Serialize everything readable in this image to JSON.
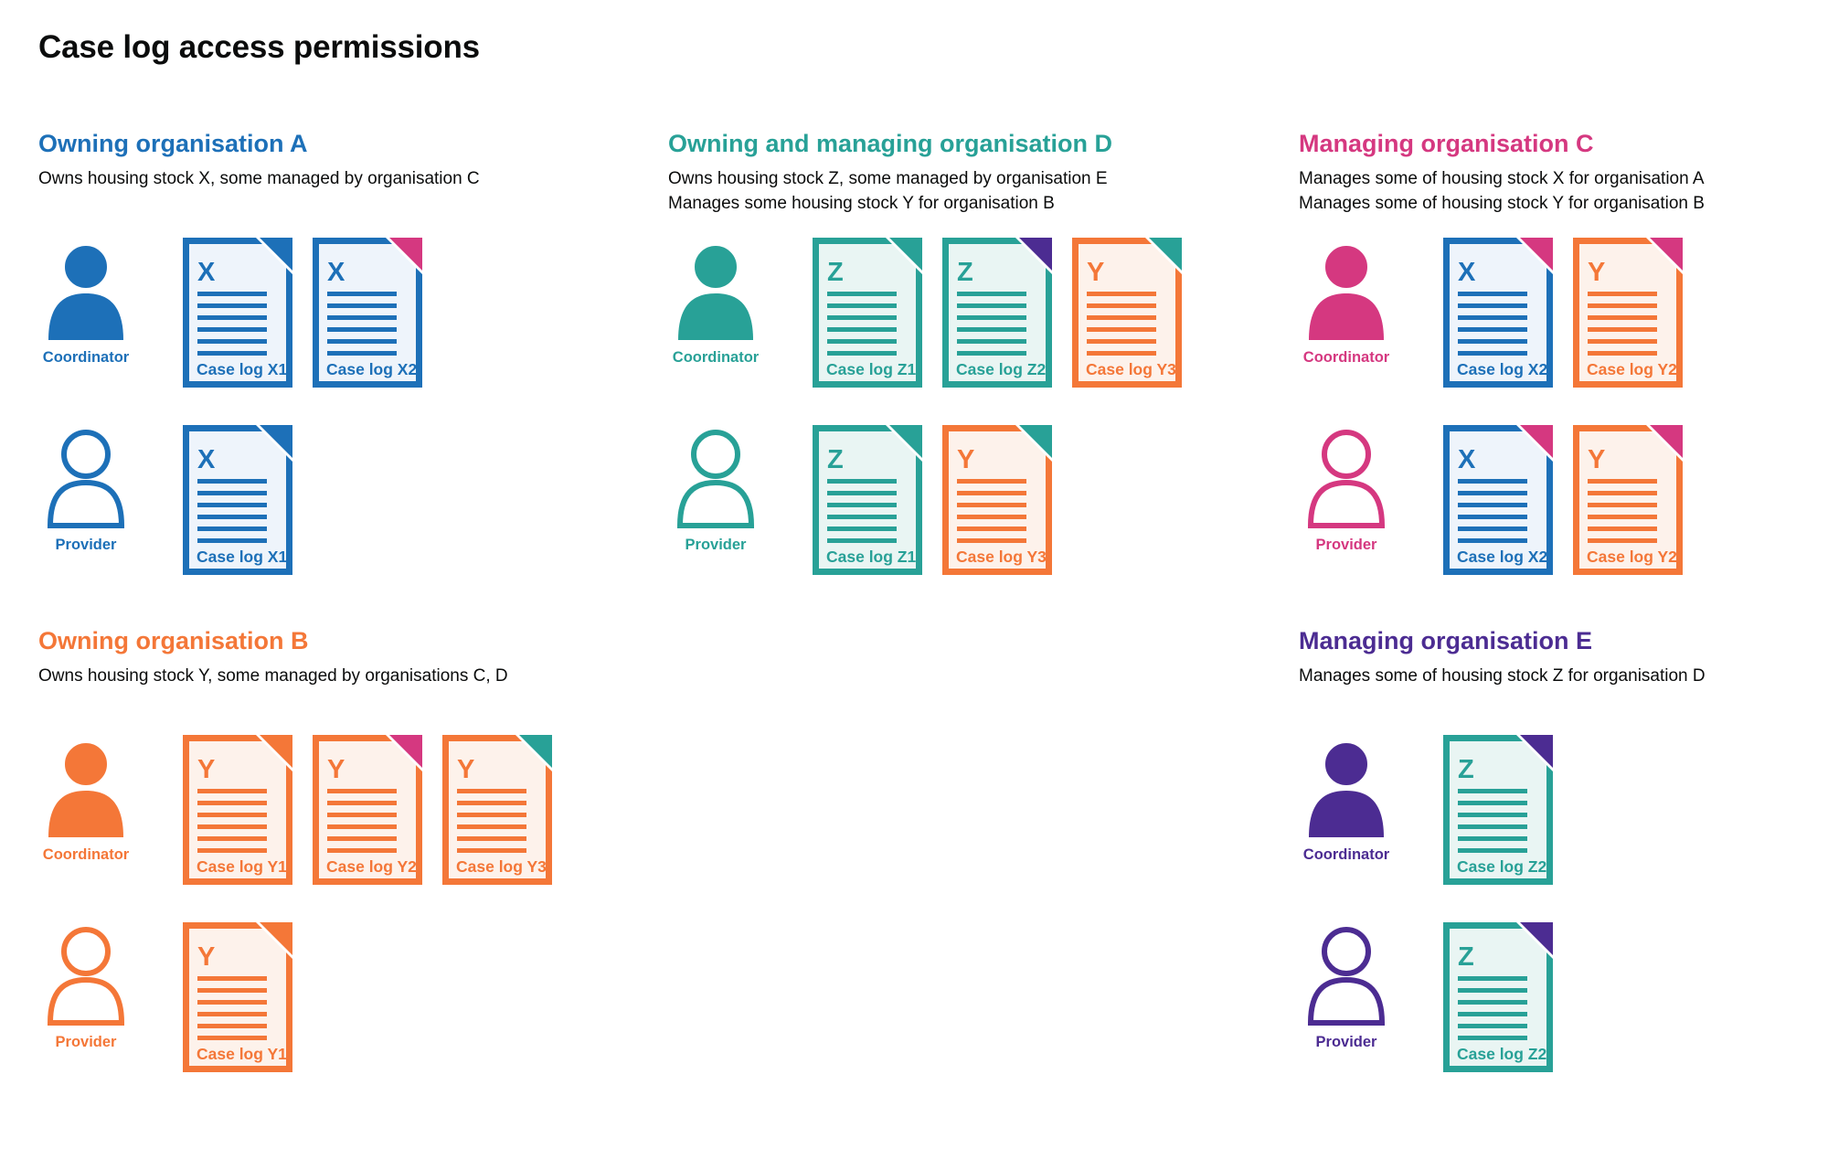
{
  "page": {
    "title": "Case log access permissions"
  },
  "colors": {
    "blue": "#1d70b8",
    "blue_tint": "#eef4fb",
    "teal": "#28a197",
    "teal_tint": "#e9f5f3",
    "orange": "#f47738",
    "orange_tint": "#fdf2eb",
    "pink": "#d53880",
    "purple": "#4c2c92",
    "text": "#0b0c0c"
  },
  "sections": [
    {
      "id": "org-a",
      "color": "blue",
      "heading": "Owning organisation A",
      "description": [
        "Owns housing stock X, some managed by organisation C"
      ],
      "rows": [
        {
          "role": "Coordinator",
          "person": "filled",
          "docs": [
            {
              "letter": "X",
              "label": "Case log X1",
              "doc_color": "blue",
              "fold_color": "blue"
            },
            {
              "letter": "X",
              "label": "Case log X2",
              "doc_color": "blue",
              "fold_color": "pink"
            }
          ]
        },
        {
          "role": "Provider",
          "person": "outline",
          "docs": [
            {
              "letter": "X",
              "label": "Case log X1",
              "doc_color": "blue",
              "fold_color": "blue"
            }
          ]
        }
      ]
    },
    {
      "id": "org-b",
      "color": "orange",
      "heading": "Owning organisation B",
      "description": [
        "Owns housing stock Y, some managed by organisations C, D"
      ],
      "rows": [
        {
          "role": "Coordinator",
          "person": "filled",
          "docs": [
            {
              "letter": "Y",
              "label": "Case log Y1",
              "doc_color": "orange",
              "fold_color": "orange"
            },
            {
              "letter": "Y",
              "label": "Case log Y2",
              "doc_color": "orange",
              "fold_color": "pink"
            },
            {
              "letter": "Y",
              "label": "Case log Y3",
              "doc_color": "orange",
              "fold_color": "teal"
            }
          ]
        },
        {
          "role": "Provider",
          "person": "outline",
          "docs": [
            {
              "letter": "Y",
              "label": "Case log Y1",
              "doc_color": "orange",
              "fold_color": "orange"
            }
          ]
        }
      ]
    },
    {
      "id": "org-d",
      "color": "teal",
      "heading": "Owning and managing organisation D",
      "description": [
        "Owns housing stock Z, some managed by organisation E",
        "Manages some housing stock Y for organisation B"
      ],
      "rows": [
        {
          "role": "Coordinator",
          "person": "filled",
          "docs": [
            {
              "letter": "Z",
              "label": "Case log Z1",
              "doc_color": "teal",
              "fold_color": "teal"
            },
            {
              "letter": "Z",
              "label": "Case log Z2",
              "doc_color": "teal",
              "fold_color": "purple"
            },
            {
              "letter": "Y",
              "label": "Case log Y3",
              "doc_color": "orange",
              "fold_color": "teal"
            }
          ]
        },
        {
          "role": "Provider",
          "person": "outline",
          "docs": [
            {
              "letter": "Z",
              "label": "Case log Z1",
              "doc_color": "teal",
              "fold_color": "teal"
            },
            {
              "letter": "Y",
              "label": "Case log Y3",
              "doc_color": "orange",
              "fold_color": "teal"
            }
          ]
        }
      ]
    },
    {
      "id": "org-c",
      "color": "pink",
      "heading": "Managing organisation C",
      "description": [
        "Manages some of housing stock X for organisation A",
        "Manages some of housing stock Y for organisation B"
      ],
      "rows": [
        {
          "role": "Coordinator",
          "person": "filled",
          "docs": [
            {
              "letter": "X",
              "label": "Case log X2",
              "doc_color": "blue",
              "fold_color": "pink"
            },
            {
              "letter": "Y",
              "label": "Case log Y2",
              "doc_color": "orange",
              "fold_color": "pink"
            }
          ]
        },
        {
          "role": "Provider",
          "person": "outline",
          "docs": [
            {
              "letter": "X",
              "label": "Case log X2",
              "doc_color": "blue",
              "fold_color": "pink"
            },
            {
              "letter": "Y",
              "label": "Case log Y2",
              "doc_color": "orange",
              "fold_color": "pink"
            }
          ]
        }
      ]
    },
    {
      "id": "org-e",
      "color": "purple",
      "heading": "Managing organisation E",
      "description": [
        "Manages some of housing stock Z for organisation D"
      ],
      "rows": [
        {
          "role": "Coordinator",
          "person": "filled",
          "docs": [
            {
              "letter": "Z",
              "label": "Case log Z2",
              "doc_color": "teal",
              "fold_color": "purple"
            }
          ]
        },
        {
          "role": "Provider",
          "person": "outline",
          "docs": [
            {
              "letter": "Z",
              "label": "Case log Z2",
              "doc_color": "teal",
              "fold_color": "purple"
            }
          ]
        }
      ]
    }
  ]
}
